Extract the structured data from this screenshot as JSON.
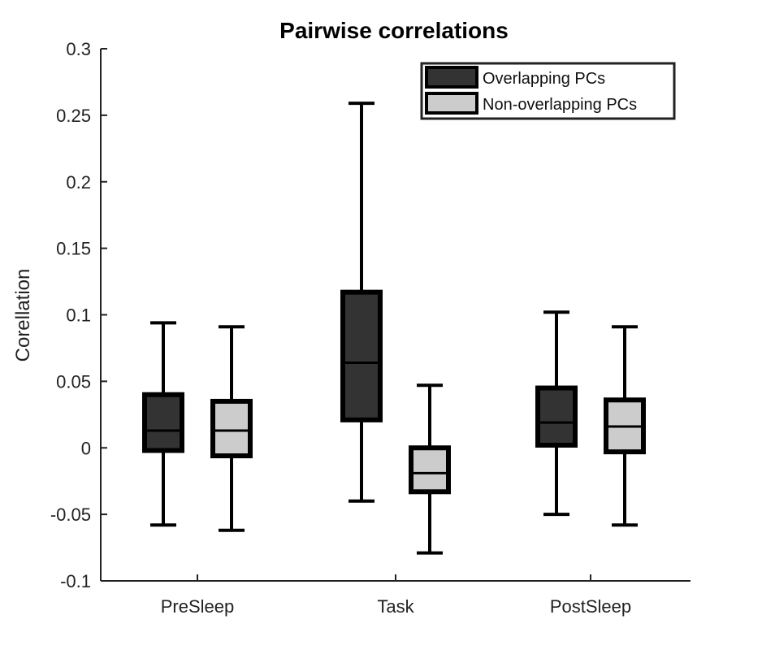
{
  "chart_data": {
    "type": "boxplot",
    "title": "Pairwise correlations",
    "xlabel": "",
    "ylabel": "Corellation",
    "ylim": [
      -0.1,
      0.3
    ],
    "yticks": [
      -0.1,
      -0.05,
      0,
      0.05,
      0.1,
      0.15,
      0.2,
      0.25,
      0.3
    ],
    "ytick_labels": [
      "-0.1",
      "-0.05",
      "0",
      "0.05",
      "0.1",
      "0.15",
      "0.2",
      "0.25",
      "0.3"
    ],
    "categories": [
      "PreSleep",
      "Task",
      "PostSleep"
    ],
    "grid": false,
    "legend_position": "top-right",
    "series": [
      {
        "name": "Overlapping PCs",
        "color": "#333333",
        "boxes": [
          {
            "min": -0.058,
            "q1": -0.002,
            "median": 0.013,
            "q3": 0.04,
            "max": 0.094
          },
          {
            "min": -0.04,
            "q1": 0.021,
            "median": 0.064,
            "q3": 0.117,
            "max": 0.259
          },
          {
            "min": -0.05,
            "q1": 0.002,
            "median": 0.019,
            "q3": 0.045,
            "max": 0.102
          }
        ]
      },
      {
        "name": "Non-overlapping PCs",
        "color": "#cccccc",
        "boxes": [
          {
            "min": -0.062,
            "q1": -0.006,
            "median": 0.013,
            "q3": 0.035,
            "max": 0.091
          },
          {
            "min": -0.079,
            "q1": -0.033,
            "median": -0.019,
            "q3": 0.0,
            "max": 0.047
          },
          {
            "min": -0.058,
            "q1": -0.003,
            "median": 0.016,
            "q3": 0.036,
            "max": 0.091
          }
        ]
      }
    ]
  }
}
